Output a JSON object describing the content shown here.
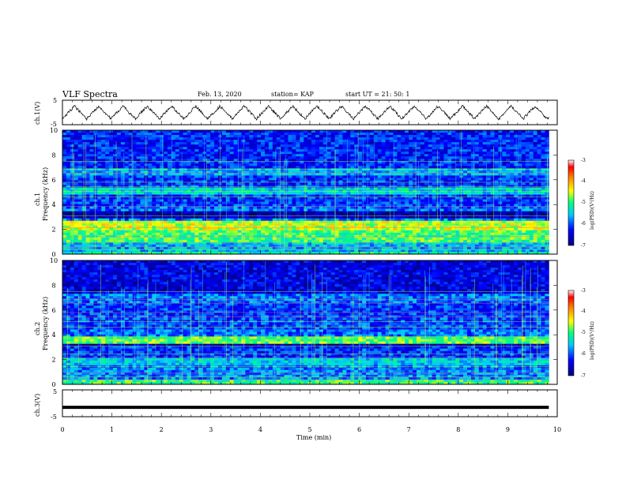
{
  "header": {
    "title": "VLF Spectra",
    "date": "Feb. 13, 2020",
    "station": "station= KAP",
    "start": "start  UT  =   21: 50: 1"
  },
  "chart_data": [
    {
      "type": "line",
      "name": "ch1-waveform",
      "ylabel": "ch.1(V)",
      "ylim": [
        -5,
        5
      ],
      "ytick_labels": [
        "5",
        "-5"
      ],
      "xlim": [
        0,
        10
      ],
      "description_shape": "triangular oscillation roughly between -3 and +3 V, approx 20 cycles over 9.8 min"
    },
    {
      "type": "heatmap",
      "name": "ch1-spectrogram",
      "ylabel_top": "ch.1",
      "ylabel": "Frequency (kHz)",
      "ylim": [
        0,
        10
      ],
      "ytick_labels": [
        "0",
        "2",
        "4",
        "6",
        "8",
        "10"
      ],
      "xlim": [
        0,
        10
      ],
      "colorbar": {
        "label": "log(PSD)(V²/Hz)",
        "range": [
          -7,
          -3
        ],
        "tick_labels": [
          "-3",
          "-4",
          "-5",
          "-6",
          "-7"
        ]
      }
    },
    {
      "type": "heatmap",
      "name": "ch2-spectrogram",
      "ylabel_top": "ch.2",
      "ylabel": "Frequency (kHz)",
      "ylim": [
        0,
        10
      ],
      "ytick_labels": [
        "0",
        "2",
        "4",
        "6",
        "8",
        "10"
      ],
      "xlim": [
        0,
        10
      ],
      "colorbar": {
        "label": "log(PSD)(V²/Hz)",
        "range": [
          -7,
          -3
        ],
        "tick_labels": [
          "-3",
          "-4",
          "-5",
          "-6",
          "-7"
        ]
      }
    },
    {
      "type": "line",
      "name": "ch3-waveform",
      "ylabel": "ch.3(V)",
      "ylim": [
        -5,
        5
      ],
      "ytick_labels": [
        "5",
        "-5"
      ],
      "xlim": [
        0,
        10
      ],
      "constant_value": -1.5
    }
  ],
  "xaxis": {
    "label": "Time (min)",
    "ticks": [
      0,
      1,
      2,
      3,
      4,
      5,
      6,
      7,
      8,
      9,
      10
    ],
    "tick_labels": [
      "0",
      "1",
      "2",
      "3",
      "4",
      "5",
      "6",
      "7",
      "8",
      "9",
      "10"
    ],
    "data_end": 9.83
  }
}
